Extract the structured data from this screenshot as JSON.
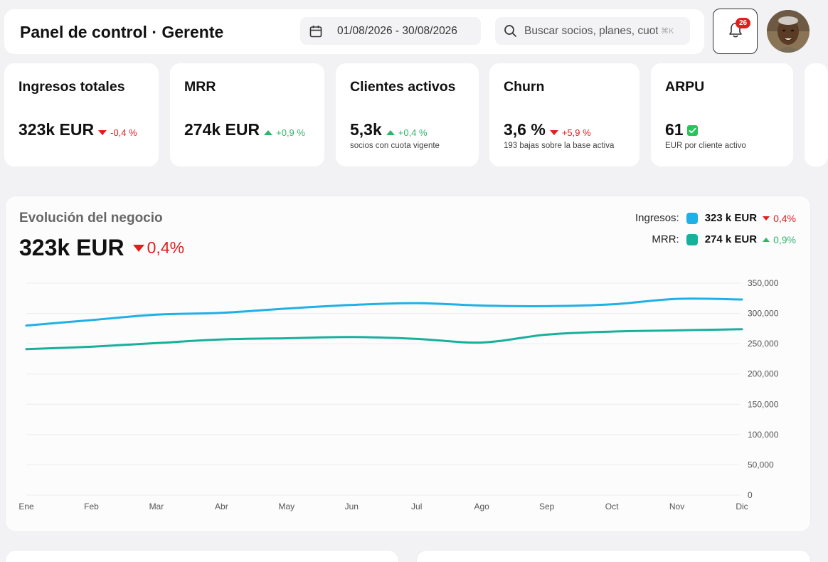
{
  "header": {
    "title": "Panel de control · Gerente",
    "date_range": "01/08/2026 - 30/08/2026",
    "search_placeholder": "Buscar socios, planes, cuotas...",
    "search_shortcut": "⌘K",
    "notifications_count": "26"
  },
  "kpis": [
    {
      "label": "Ingresos totales",
      "value": "323k EUR",
      "delta": "-0,4 %",
      "trend": "down",
      "sub": ""
    },
    {
      "label": "MRR",
      "value": "274k EUR",
      "delta": "+0,9 %",
      "trend": "up",
      "sub": ""
    },
    {
      "label": "Clientes activos",
      "value": "5,3k",
      "delta": "+0,4 %",
      "trend": "up",
      "sub": "socios con cuota vigente"
    },
    {
      "label": "Churn",
      "value": "3,6 %",
      "delta": "+5,9 %",
      "trend": "down",
      "sub": "193 bajas sobre la base activa"
    },
    {
      "label": "ARPU",
      "value": "61",
      "delta": "",
      "trend": "check",
      "sub": "EUR por cliente activo"
    }
  ],
  "chart_card": {
    "title": "Evolución del negocio",
    "big_value": "323k EUR",
    "big_delta": "0,4%",
    "legend": [
      {
        "name": "Ingresos:",
        "value": "323 k EUR",
        "delta": "0,4%",
        "trend": "down",
        "color": "#1fb0e6"
      },
      {
        "name": "MRR:",
        "value": "274 k EUR",
        "delta": "0,9%",
        "trend": "up",
        "color": "#17b09b"
      }
    ]
  },
  "chart_data": {
    "type": "line",
    "title": "",
    "xlabel": "",
    "ylabel": "",
    "categories": [
      "Ene",
      "Feb",
      "Mar",
      "Abr",
      "May",
      "Jun",
      "Jul",
      "Ago",
      "Sep",
      "Oct",
      "Nov",
      "Dic"
    ],
    "ylim": [
      0,
      350000
    ],
    "yticks": [
      "350,000",
      "300,000",
      "250,000",
      "200,000",
      "150,000",
      "100,000",
      "50,000",
      "0"
    ],
    "grid": true,
    "legend_position": "top-right",
    "series": [
      {
        "name": "Ingresos",
        "color": "#1fb0e6",
        "values": [
          280000,
          289000,
          298000,
          301000,
          308000,
          314000,
          317000,
          313000,
          312000,
          315000,
          324000,
          323000
        ]
      },
      {
        "name": "MRR",
        "color": "#17b09b",
        "values": [
          241000,
          245000,
          251000,
          257000,
          259000,
          261000,
          258000,
          252000,
          265000,
          270000,
          272000,
          274000
        ]
      }
    ]
  }
}
